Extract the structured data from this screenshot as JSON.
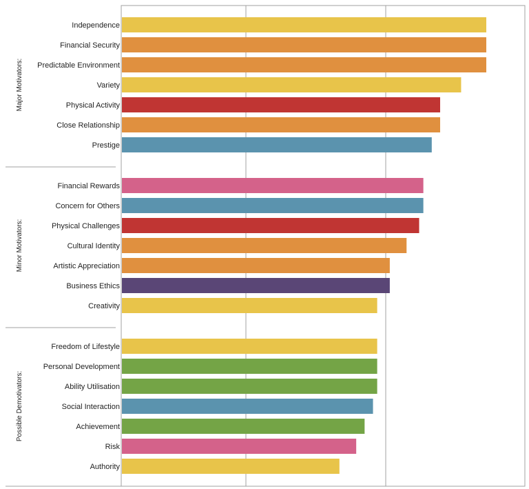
{
  "chart_data": {
    "type": "bar",
    "orientation": "horizontal",
    "x_range": [
      0,
      100
    ],
    "gridlines": true,
    "groups": [
      {
        "name": "Major Motivators:",
        "items": [
          {
            "label": "Independence",
            "value": 87,
            "color": "#E8C44A"
          },
          {
            "label": "Financial Security",
            "value": 87,
            "color": "#E0903F"
          },
          {
            "label": "Predictable Environment",
            "value": 87,
            "color": "#E0903F"
          },
          {
            "label": "Variety",
            "value": 81,
            "color": "#E8C44A"
          },
          {
            "label": "Physical Activity",
            "value": 76,
            "color": "#C03533"
          },
          {
            "label": "Close Relationship",
            "value": 76,
            "color": "#E0903F"
          },
          {
            "label": "Prestige",
            "value": 74,
            "color": "#5B93AE"
          }
        ]
      },
      {
        "name": "Minor Motivators:",
        "items": [
          {
            "label": "Financial Rewards",
            "value": 72,
            "color": "#D4628A"
          },
          {
            "label": "Concern for Others",
            "value": 72,
            "color": "#5B93AE"
          },
          {
            "label": "Physical Challenges",
            "value": 71,
            "color": "#C03533"
          },
          {
            "label": "Cultural Identity",
            "value": 68,
            "color": "#E0903F"
          },
          {
            "label": "Artistic Appreciation",
            "value": 64,
            "color": "#E0903F"
          },
          {
            "label": "Business Ethics",
            "value": 64,
            "color": "#5A4676"
          },
          {
            "label": "Creativity",
            "value": 61,
            "color": "#E8C44A"
          }
        ]
      },
      {
        "name": "Possible Demotivators:",
        "items": [
          {
            "label": "Freedom of Lifestyle",
            "value": 61,
            "color": "#E8C44A"
          },
          {
            "label": "Personal Development",
            "value": 61,
            "color": "#74A446"
          },
          {
            "label": "Ability Utilisation",
            "value": 61,
            "color": "#74A446"
          },
          {
            "label": "Social Interaction",
            "value": 60,
            "color": "#5B93AE"
          },
          {
            "label": "Achievement",
            "value": 58,
            "color": "#74A446"
          },
          {
            "label": "Risk",
            "value": 56,
            "color": "#D4628A"
          },
          {
            "label": "Authority",
            "value": 52,
            "color": "#E8C44A"
          }
        ]
      }
    ]
  }
}
